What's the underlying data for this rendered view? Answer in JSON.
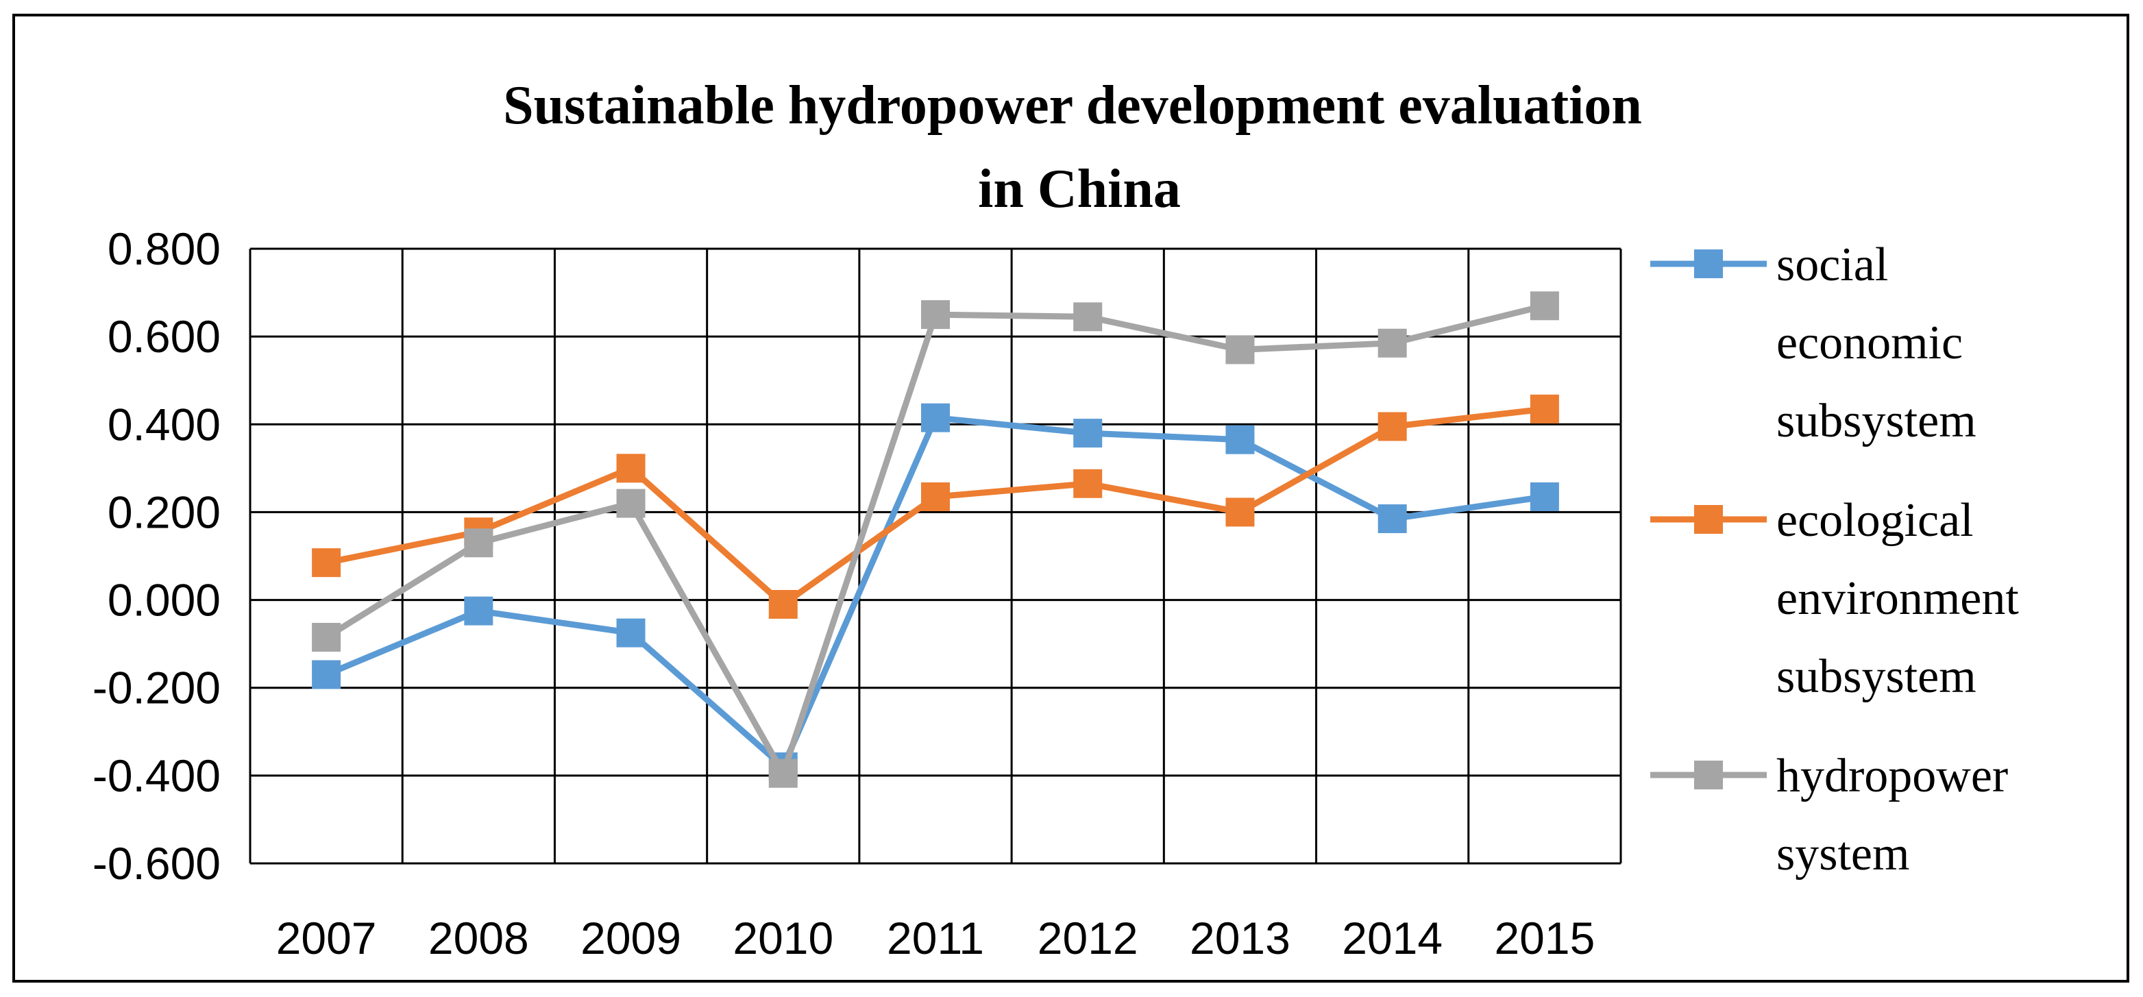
{
  "chart_data": {
    "type": "line",
    "title": [
      "Sustainable hydropower development evaluation",
      "in China"
    ],
    "xlabel": "",
    "ylabel": "",
    "categories": [
      "2007",
      "2008",
      "2009",
      "2010",
      "2011",
      "2012",
      "2013",
      "2014",
      "2015"
    ],
    "y_ticks": [
      "0.800",
      "0.600",
      "0.400",
      "0.200",
      "0.000",
      "-0.200",
      "-0.400",
      "-0.600"
    ],
    "ylim": [
      -0.6,
      0.8
    ],
    "grid": true,
    "legend_position": "right",
    "series": [
      {
        "name": "social economic subsystem",
        "legend_lines": [
          "social",
          "economic",
          "subsystem"
        ],
        "color": "#5B9BD5",
        "marker": "square",
        "values": [
          -0.17,
          -0.025,
          -0.075,
          -0.38,
          0.415,
          0.38,
          0.365,
          0.185,
          0.235
        ]
      },
      {
        "name": "ecological environment subsystem",
        "legend_lines": [
          "ecological",
          "environment",
          "subsystem"
        ],
        "color": "#ED7D31",
        "marker": "square",
        "values": [
          0.085,
          0.155,
          0.3,
          -0.01,
          0.235,
          0.265,
          0.2,
          0.395,
          0.435
        ]
      },
      {
        "name": "hydropower system",
        "legend_lines": [
          "hydropower",
          "system"
        ],
        "color": "#A5A5A5",
        "marker": "square",
        "values": [
          -0.085,
          0.13,
          0.22,
          -0.395,
          0.65,
          0.645,
          0.57,
          0.585,
          0.67
        ]
      }
    ]
  }
}
